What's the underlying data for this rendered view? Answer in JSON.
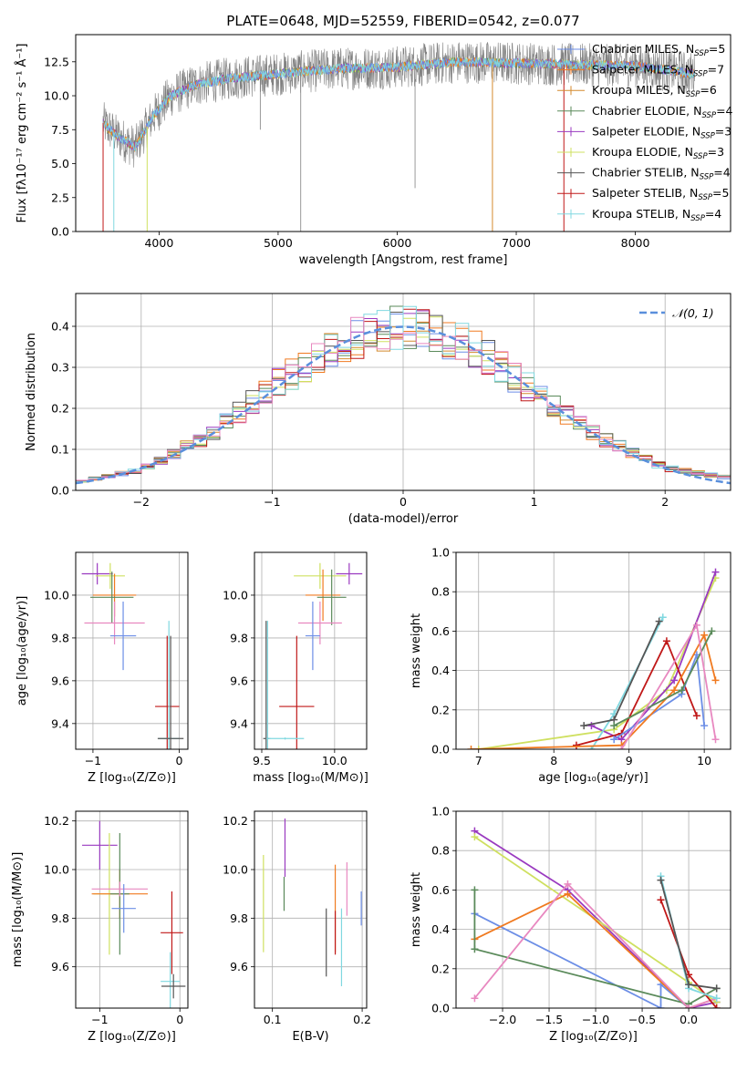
{
  "figure_title": "PLATE=0648, MJD=52559, FIBERID=0542, z=0.077",
  "colors": {
    "c_miles": "#6c8ee6",
    "s_miles": "#f07a20",
    "k_miles": "#d48a2e",
    "c_elodie": "#5a8a5a",
    "s_elodie": "#9a3ac0",
    "k_elodie": "#cfe060",
    "c_stelib": "#555555",
    "s_stelib": "#c01818",
    "k_stelib": "#80d8e0",
    "pink": "#e888c0",
    "gray": "#808080",
    "gauss": "#5a8fdc"
  },
  "chart_data": [
    {
      "id": "spectrum",
      "type": "line",
      "xlabel": "wavelength [Angstrom, rest frame]",
      "ylabel": "Flux [fλ10⁻¹⁷ erg cm⁻² s⁻¹ Å⁻¹]",
      "xlim": [
        3300,
        8800
      ],
      "ylim": [
        0,
        14.5
      ],
      "xticks": [
        4000,
        5000,
        6000,
        7000,
        8000
      ],
      "yticks": [
        0.0,
        2.5,
        5.0,
        7.5,
        10.0,
        12.5
      ],
      "data_envelope": [
        [
          3530,
          8.0
        ],
        [
          3650,
          7.0
        ],
        [
          3800,
          6.2
        ],
        [
          3950,
          8.5
        ],
        [
          4100,
          10.0
        ],
        [
          4300,
          10.8
        ],
        [
          4600,
          11.3
        ],
        [
          5000,
          11.6
        ],
        [
          5500,
          12.0
        ],
        [
          6000,
          12.1
        ],
        [
          6500,
          12.5
        ],
        [
          7000,
          12.4
        ],
        [
          7400,
          12.3
        ],
        [
          8000,
          12.2
        ],
        [
          8500,
          11.6
        ]
      ],
      "legend": [
        {
          "label": "Chabrier MILES, N",
          "sub": "SSP",
          "eq": "=5",
          "color_key": "c_miles"
        },
        {
          "label": "Salpeter MILES, N",
          "sub": "SSP",
          "eq": "=7",
          "color_key": "s_miles"
        },
        {
          "label": "Kroupa MILES, N",
          "sub": "SSP",
          "eq": "=6",
          "color_key": "k_miles"
        },
        {
          "label": "Chabrier ELODIE, N",
          "sub": "SSP",
          "eq": "=4",
          "color_key": "c_elodie"
        },
        {
          "label": "Salpeter ELODIE, N",
          "sub": "SSP",
          "eq": "=3",
          "color_key": "s_elodie"
        },
        {
          "label": "Kroupa ELODIE, N",
          "sub": "SSP",
          "eq": "=3",
          "color_key": "k_elodie"
        },
        {
          "label": "Chabrier STELIB, N",
          "sub": "SSP",
          "eq": "=4",
          "color_key": "c_stelib"
        },
        {
          "label": "Salpeter STELIB, N",
          "sub": "SSP",
          "eq": "=5",
          "color_key": "s_stelib"
        },
        {
          "label": "Kroupa STELIB, N",
          "sub": "SSP",
          "eq": "=4",
          "color_key": "k_stelib"
        }
      ]
    },
    {
      "id": "residuals",
      "type": "histogram",
      "xlabel": "(data-model)/error",
      "ylabel": "Normed distribution",
      "xlim": [
        -2.5,
        2.5
      ],
      "ylim": [
        0,
        0.48
      ],
      "xticks": [
        -2,
        -1,
        0,
        1,
        2
      ],
      "yticks": [
        0.0,
        0.1,
        0.2,
        0.3,
        0.4
      ],
      "grid": true,
      "legend": {
        "label": "𝒩(0, 1)",
        "position": "top-right"
      },
      "bin_width": 0.1,
      "approx_profile": [
        [
          -2.5,
          0.02
        ],
        [
          -2.0,
          0.05
        ],
        [
          -1.5,
          0.13
        ],
        [
          -1.0,
          0.25
        ],
        [
          -0.5,
          0.36
        ],
        [
          0.0,
          0.4
        ],
        [
          0.5,
          0.36
        ],
        [
          1.0,
          0.24
        ],
        [
          1.5,
          0.13
        ],
        [
          2.0,
          0.055
        ],
        [
          2.5,
          0.03
        ]
      ]
    },
    {
      "id": "age_vs_Z",
      "type": "errorbar",
      "xlabel": "Z [log₁₀(Z/Z⊙)]",
      "ylabel": "age  [log₁₀(age/yr)]",
      "xlim": [
        -1.2,
        0.1
      ],
      "ylim": [
        9.28,
        10.2
      ],
      "xticks": [
        -1,
        0
      ],
      "yticks": [
        9.4,
        9.6,
        9.8,
        10.0
      ],
      "points": [
        {
          "x": -0.95,
          "xerr": 0.18,
          "y": 10.1,
          "yerr": 0.05,
          "color_key": "s_elodie"
        },
        {
          "x": -0.8,
          "xerr": 0.17,
          "y": 10.09,
          "yerr": 0.06,
          "color_key": "k_elodie"
        },
        {
          "x": -0.75,
          "xerr": 0.25,
          "y": 10.0,
          "yerr": 0.1,
          "color_key": "s_miles"
        },
        {
          "x": -0.78,
          "xerr": 0.25,
          "y": 9.99,
          "yerr": 0.12,
          "color_key": "c_elodie"
        },
        {
          "x": -0.75,
          "xerr": 0.35,
          "y": 9.87,
          "yerr": 0.1,
          "color_key": "pink"
        },
        {
          "x": -0.65,
          "xerr": 0.15,
          "y": 9.81,
          "yerr": 0.16,
          "color_key": "c_miles"
        },
        {
          "x": -0.14,
          "xerr": 0.14,
          "y": 9.48,
          "yerr": 0.33,
          "color_key": "s_stelib"
        },
        {
          "x": -0.12,
          "xerr": 0.12,
          "y": 9.33,
          "yerr": 0.55,
          "color_key": "k_stelib"
        },
        {
          "x": -0.1,
          "xerr": 0.15,
          "y": 9.33,
          "yerr": 0.48,
          "color_key": "c_stelib"
        }
      ]
    },
    {
      "id": "age_vs_mass",
      "type": "errorbar",
      "xlabel": "mass [log₁₀(M/M⊙)]",
      "ylabel": "",
      "xlim": [
        9.45,
        10.22
      ],
      "ylim": [
        9.28,
        10.2
      ],
      "xticks": [
        9.5,
        10.0
      ],
      "yticks": [
        9.4,
        9.6,
        9.8,
        10.0
      ],
      "points": [
        {
          "x": 10.1,
          "xerr": 0.09,
          "y": 10.1,
          "yerr": 0.05,
          "color_key": "s_elodie"
        },
        {
          "x": 9.9,
          "xerr": 0.18,
          "y": 10.09,
          "yerr": 0.06,
          "color_key": "k_elodie"
        },
        {
          "x": 9.92,
          "xerr": 0.12,
          "y": 10.0,
          "yerr": 0.12,
          "color_key": "s_miles"
        },
        {
          "x": 9.98,
          "xerr": 0.1,
          "y": 9.99,
          "yerr": 0.13,
          "color_key": "c_elodie"
        },
        {
          "x": 9.9,
          "xerr": 0.15,
          "y": 9.87,
          "yerr": 0.1,
          "color_key": "pink"
        },
        {
          "x": 9.85,
          "xerr": 0.05,
          "y": 9.81,
          "yerr": 0.16,
          "color_key": "c_miles"
        },
        {
          "x": 9.74,
          "xerr": 0.12,
          "y": 9.48,
          "yerr": 0.33,
          "color_key": "s_stelib"
        },
        {
          "x": 9.54,
          "xerr": 0.02,
          "y": 9.33,
          "yerr": 0.55,
          "color_key": "k_stelib"
        },
        {
          "x": 9.53,
          "xerr": 0.02,
          "y": 9.33,
          "yerr": 0.55,
          "color_key": "c_stelib"
        },
        {
          "x": 9.66,
          "xerr": 0.13,
          "y": 9.33,
          "yerr": 0.005,
          "color_key": "k_stelib"
        }
      ]
    },
    {
      "id": "weight_vs_age",
      "type": "line",
      "xlabel": "age  [log₁₀(age/yr)]",
      "ylabel": "mass weight",
      "xlim": [
        6.7,
        10.35
      ],
      "ylim": [
        0,
        1.0
      ],
      "xticks": [
        7,
        8,
        9,
        10
      ],
      "yticks": [
        0.0,
        0.2,
        0.4,
        0.6,
        0.8,
        1.0
      ],
      "grid": true,
      "series": [
        {
          "color_key": "k_elodie",
          "x": [
            7.0,
            8.8,
            9.5,
            10.15
          ],
          "y": [
            0.0,
            0.1,
            0.3,
            0.87
          ]
        },
        {
          "color_key": "s_elodie",
          "x": [
            8.5,
            8.9,
            9.6,
            10.15
          ],
          "y": [
            0.12,
            0.05,
            0.35,
            0.9
          ]
        },
        {
          "color_key": "k_stelib",
          "x": [
            8.5,
            8.8,
            9.45
          ],
          "y": [
            0.0,
            0.18,
            0.67
          ]
        },
        {
          "color_key": "c_stelib",
          "x": [
            8.4,
            8.8,
            9.4
          ],
          "y": [
            0.12,
            0.15,
            0.65
          ]
        },
        {
          "color_key": "s_stelib",
          "x": [
            8.3,
            8.9,
            9.5,
            9.9
          ],
          "y": [
            0.02,
            0.08,
            0.55,
            0.17
          ]
        },
        {
          "color_key": "c_miles",
          "x": [
            8.8,
            9.7,
            9.9,
            10.0
          ],
          "y": [
            0.05,
            0.28,
            0.48,
            0.12
          ]
        },
        {
          "color_key": "s_miles",
          "x": [
            6.9,
            8.9,
            9.6,
            10.0,
            10.15
          ],
          "y": [
            0.0,
            0.02,
            0.3,
            0.58,
            0.35
          ]
        },
        {
          "color_key": "c_elodie",
          "x": [
            8.8,
            9.7,
            10.1
          ],
          "y": [
            0.12,
            0.3,
            0.6
          ]
        },
        {
          "color_key": "pink",
          "x": [
            8.9,
            9.9,
            10.15
          ],
          "y": [
            0.0,
            0.63,
            0.05
          ]
        }
      ]
    },
    {
      "id": "mass_vs_Z",
      "type": "errorbar",
      "xlabel": "Z [log₁₀(Z/Z⊙)]",
      "ylabel": "mass [log₁₀(M/M⊙)]",
      "xlim": [
        -1.3,
        0.1
      ],
      "ylim": [
        9.43,
        10.24
      ],
      "xticks": [
        -1,
        0
      ],
      "yticks": [
        9.6,
        9.8,
        10.0,
        10.2
      ],
      "points": [
        {
          "x": -1.0,
          "xerr": 0.22,
          "y": 10.1,
          "yerr": 0.1,
          "color_key": "s_elodie"
        },
        {
          "x": -0.88,
          "xerr": 0.2,
          "y": 9.9,
          "yerr": 0.25,
          "color_key": "k_elodie"
        },
        {
          "x": -0.75,
          "xerr": 0.35,
          "y": 9.9,
          "yerr": 0.1,
          "color_key": "s_miles"
        },
        {
          "x": -0.75,
          "xerr": 0.12,
          "y": 9.9,
          "yerr": 0.25,
          "color_key": "c_elodie"
        },
        {
          "x": -0.75,
          "xerr": 0.35,
          "y": 9.92,
          "yerr": 0.03,
          "color_key": "pink"
        },
        {
          "x": -0.7,
          "xerr": 0.15,
          "y": 9.84,
          "yerr": 0.1,
          "color_key": "c_miles"
        },
        {
          "x": -0.1,
          "xerr": 0.14,
          "y": 9.74,
          "yerr": 0.17,
          "color_key": "s_stelib"
        },
        {
          "x": -0.12,
          "xerr": 0.12,
          "y": 9.54,
          "yerr": 0.12,
          "color_key": "k_stelib"
        },
        {
          "x": -0.08,
          "xerr": 0.15,
          "y": 9.52,
          "yerr": 0.05,
          "color_key": "c_stelib"
        }
      ]
    },
    {
      "id": "mass_vs_EBV",
      "type": "errorbar",
      "xlabel": "E(B-V)",
      "ylabel": "",
      "xlim": [
        0.08,
        0.205
      ],
      "ylim": [
        9.43,
        10.24
      ],
      "xticks": [
        0.1,
        0.2
      ],
      "yticks": [
        9.6,
        9.8,
        10.0,
        10.2
      ],
      "points": [
        {
          "x": 0.09,
          "y": 9.86,
          "yerr": 0.2,
          "color_key": "k_elodie"
        },
        {
          "x": 0.114,
          "y": 10.09,
          "yerr": 0.12,
          "color_key": "s_elodie"
        },
        {
          "x": 0.113,
          "y": 9.9,
          "yerr": 0.07,
          "color_key": "c_elodie"
        },
        {
          "x": 0.16,
          "y": 9.7,
          "yerr": 0.14,
          "color_key": "c_stelib"
        },
        {
          "x": 0.17,
          "y": 9.84,
          "yerr": 0.18,
          "color_key": "s_miles"
        },
        {
          "x": 0.17,
          "y": 9.74,
          "yerr": 0.09,
          "color_key": "s_stelib"
        },
        {
          "x": 0.177,
          "y": 9.68,
          "yerr": 0.16,
          "color_key": "k_stelib"
        },
        {
          "x": 0.183,
          "y": 9.92,
          "yerr": 0.11,
          "color_key": "pink"
        },
        {
          "x": 0.199,
          "y": 9.84,
          "yerr": 0.07,
          "color_key": "c_miles"
        }
      ]
    },
    {
      "id": "weight_vs_Z",
      "type": "line",
      "xlabel": "Z [log₁₀(Z/Z⊙)]",
      "ylabel": "mass weight",
      "xlim": [
        -2.5,
        0.45
      ],
      "ylim": [
        0,
        1.0
      ],
      "xticks": [
        -2.0,
        -1.5,
        -1.0,
        -0.5,
        0.0
      ],
      "yticks": [
        0.0,
        0.2,
        0.4,
        0.6,
        0.8,
        1.0
      ],
      "grid": true,
      "series": [
        {
          "color_key": "s_elodie",
          "x": [
            -2.3,
            -1.3,
            0.0,
            0.3
          ],
          "y": [
            0.9,
            0.6,
            0.0,
            0.03
          ]
        },
        {
          "color_key": "k_elodie",
          "x": [
            -2.3,
            0.0,
            0.3
          ],
          "y": [
            0.87,
            0.13,
            0.03
          ]
        },
        {
          "color_key": "c_miles",
          "x": [
            -2.3,
            -0.3,
            -0.3,
            0.0
          ],
          "y": [
            0.48,
            0.0,
            0.12,
            0.0
          ]
        },
        {
          "color_key": "s_miles",
          "x": [
            -2.3,
            -1.3,
            0.0,
            0.3
          ],
          "y": [
            0.35,
            0.58,
            0.0,
            0.05
          ]
        },
        {
          "color_key": "c_elodie",
          "x": [
            -2.3,
            -2.3,
            0.0,
            0.3
          ],
          "y": [
            0.6,
            0.3,
            0.02,
            0.1
          ]
        },
        {
          "color_key": "pink",
          "x": [
            -2.3,
            -1.3,
            0.0,
            0.3
          ],
          "y": [
            0.05,
            0.63,
            0.0,
            0.05
          ]
        },
        {
          "color_key": "s_stelib",
          "x": [
            -0.3,
            0.0,
            0.3
          ],
          "y": [
            0.55,
            0.17,
            0.0
          ]
        },
        {
          "color_key": "k_stelib",
          "x": [
            -0.3,
            0.0,
            0.3
          ],
          "y": [
            0.67,
            0.1,
            0.05
          ]
        },
        {
          "color_key": "c_stelib",
          "x": [
            -0.3,
            0.0,
            0.3
          ],
          "y": [
            0.65,
            0.12,
            0.1
          ]
        }
      ]
    }
  ]
}
